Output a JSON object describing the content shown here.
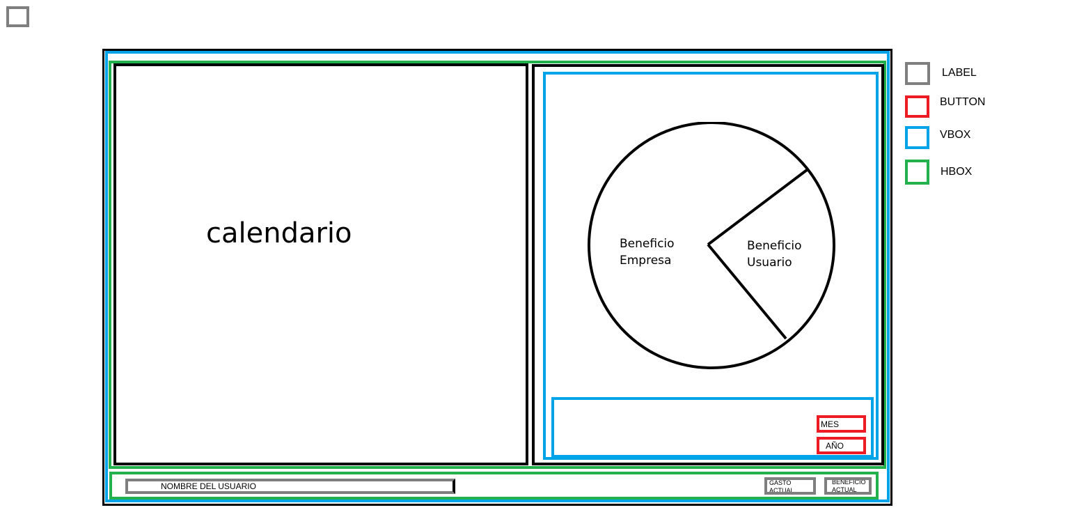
{
  "legend": {
    "items": [
      {
        "label": "LABEL",
        "color": "#7f7f7f"
      },
      {
        "label": "BUTTON",
        "color": "#ed1c24"
      },
      {
        "label": "VBOX",
        "color": "#00a2e8"
      },
      {
        "label": "HBOX",
        "color": "#22b14c"
      }
    ]
  },
  "colors": {
    "label": "#7f7f7f",
    "button": "#ed1c24",
    "vbox": "#00a2e8",
    "hbox": "#22b14c",
    "frame": "#000000"
  },
  "calendar": {
    "title": "calendario"
  },
  "pie": {
    "labels": [
      "Beneficio Empresa",
      "Beneficio Usuario"
    ],
    "empresa_line1": "Beneficio",
    "empresa_line2": "Empresa",
    "usuario_line1": "Beneficio",
    "usuario_line2": "Usuario"
  },
  "buttons": {
    "mes": "MES",
    "ano": "AÑO"
  },
  "footer": {
    "user_name": "NOMBRE DEL USUARIO",
    "gasto_actual": "GASTO ACTUAL",
    "beneficio_actual": "BENEFICIO ACTUAL"
  }
}
